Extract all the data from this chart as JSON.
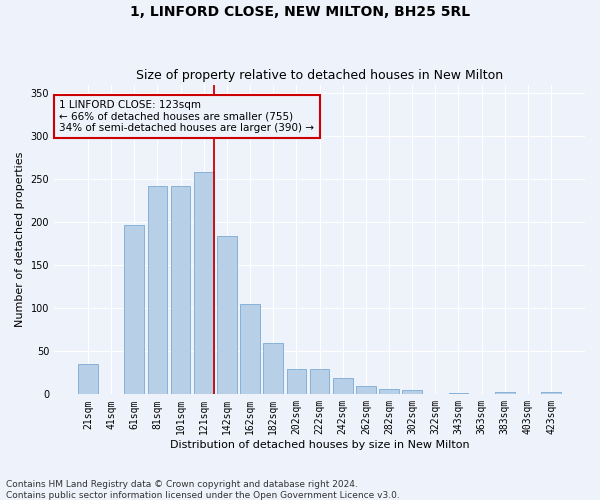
{
  "title": "1, LINFORD CLOSE, NEW MILTON, BH25 5RL",
  "subtitle": "Size of property relative to detached houses in New Milton",
  "xlabel": "Distribution of detached houses by size in New Milton",
  "ylabel": "Number of detached properties",
  "categories": [
    "21sqm",
    "41sqm",
    "61sqm",
    "81sqm",
    "101sqm",
    "121sqm",
    "142sqm",
    "162sqm",
    "182sqm",
    "202sqm",
    "222sqm",
    "242sqm",
    "262sqm",
    "282sqm",
    "302sqm",
    "322sqm",
    "343sqm",
    "363sqm",
    "383sqm",
    "403sqm",
    "423sqm"
  ],
  "values": [
    35,
    0,
    197,
    242,
    242,
    258,
    184,
    105,
    60,
    30,
    30,
    19,
    10,
    6,
    5,
    0,
    2,
    0,
    3,
    0,
    3
  ],
  "bar_color": "#b8cfe8",
  "bar_edgecolor": "#7aaad4",
  "vline_index": 5,
  "vline_color": "#cc0000",
  "annotation_text": "1 LINFORD CLOSE: 123sqm\n← 66% of detached houses are smaller (755)\n34% of semi-detached houses are larger (390) →",
  "annotation_box_edgecolor": "#cc0000",
  "ylim": [
    0,
    360
  ],
  "yticks": [
    0,
    50,
    100,
    150,
    200,
    250,
    300,
    350
  ],
  "bg_color": "#eef2fa",
  "grid_color": "#ffffff",
  "footer": "Contains HM Land Registry data © Crown copyright and database right 2024.\nContains public sector information licensed under the Open Government Licence v3.0.",
  "title_fontsize": 10,
  "subtitle_fontsize": 9,
  "xlabel_fontsize": 8,
  "ylabel_fontsize": 8,
  "tick_fontsize": 7,
  "footer_fontsize": 6.5,
  "annot_fontsize": 7.5
}
